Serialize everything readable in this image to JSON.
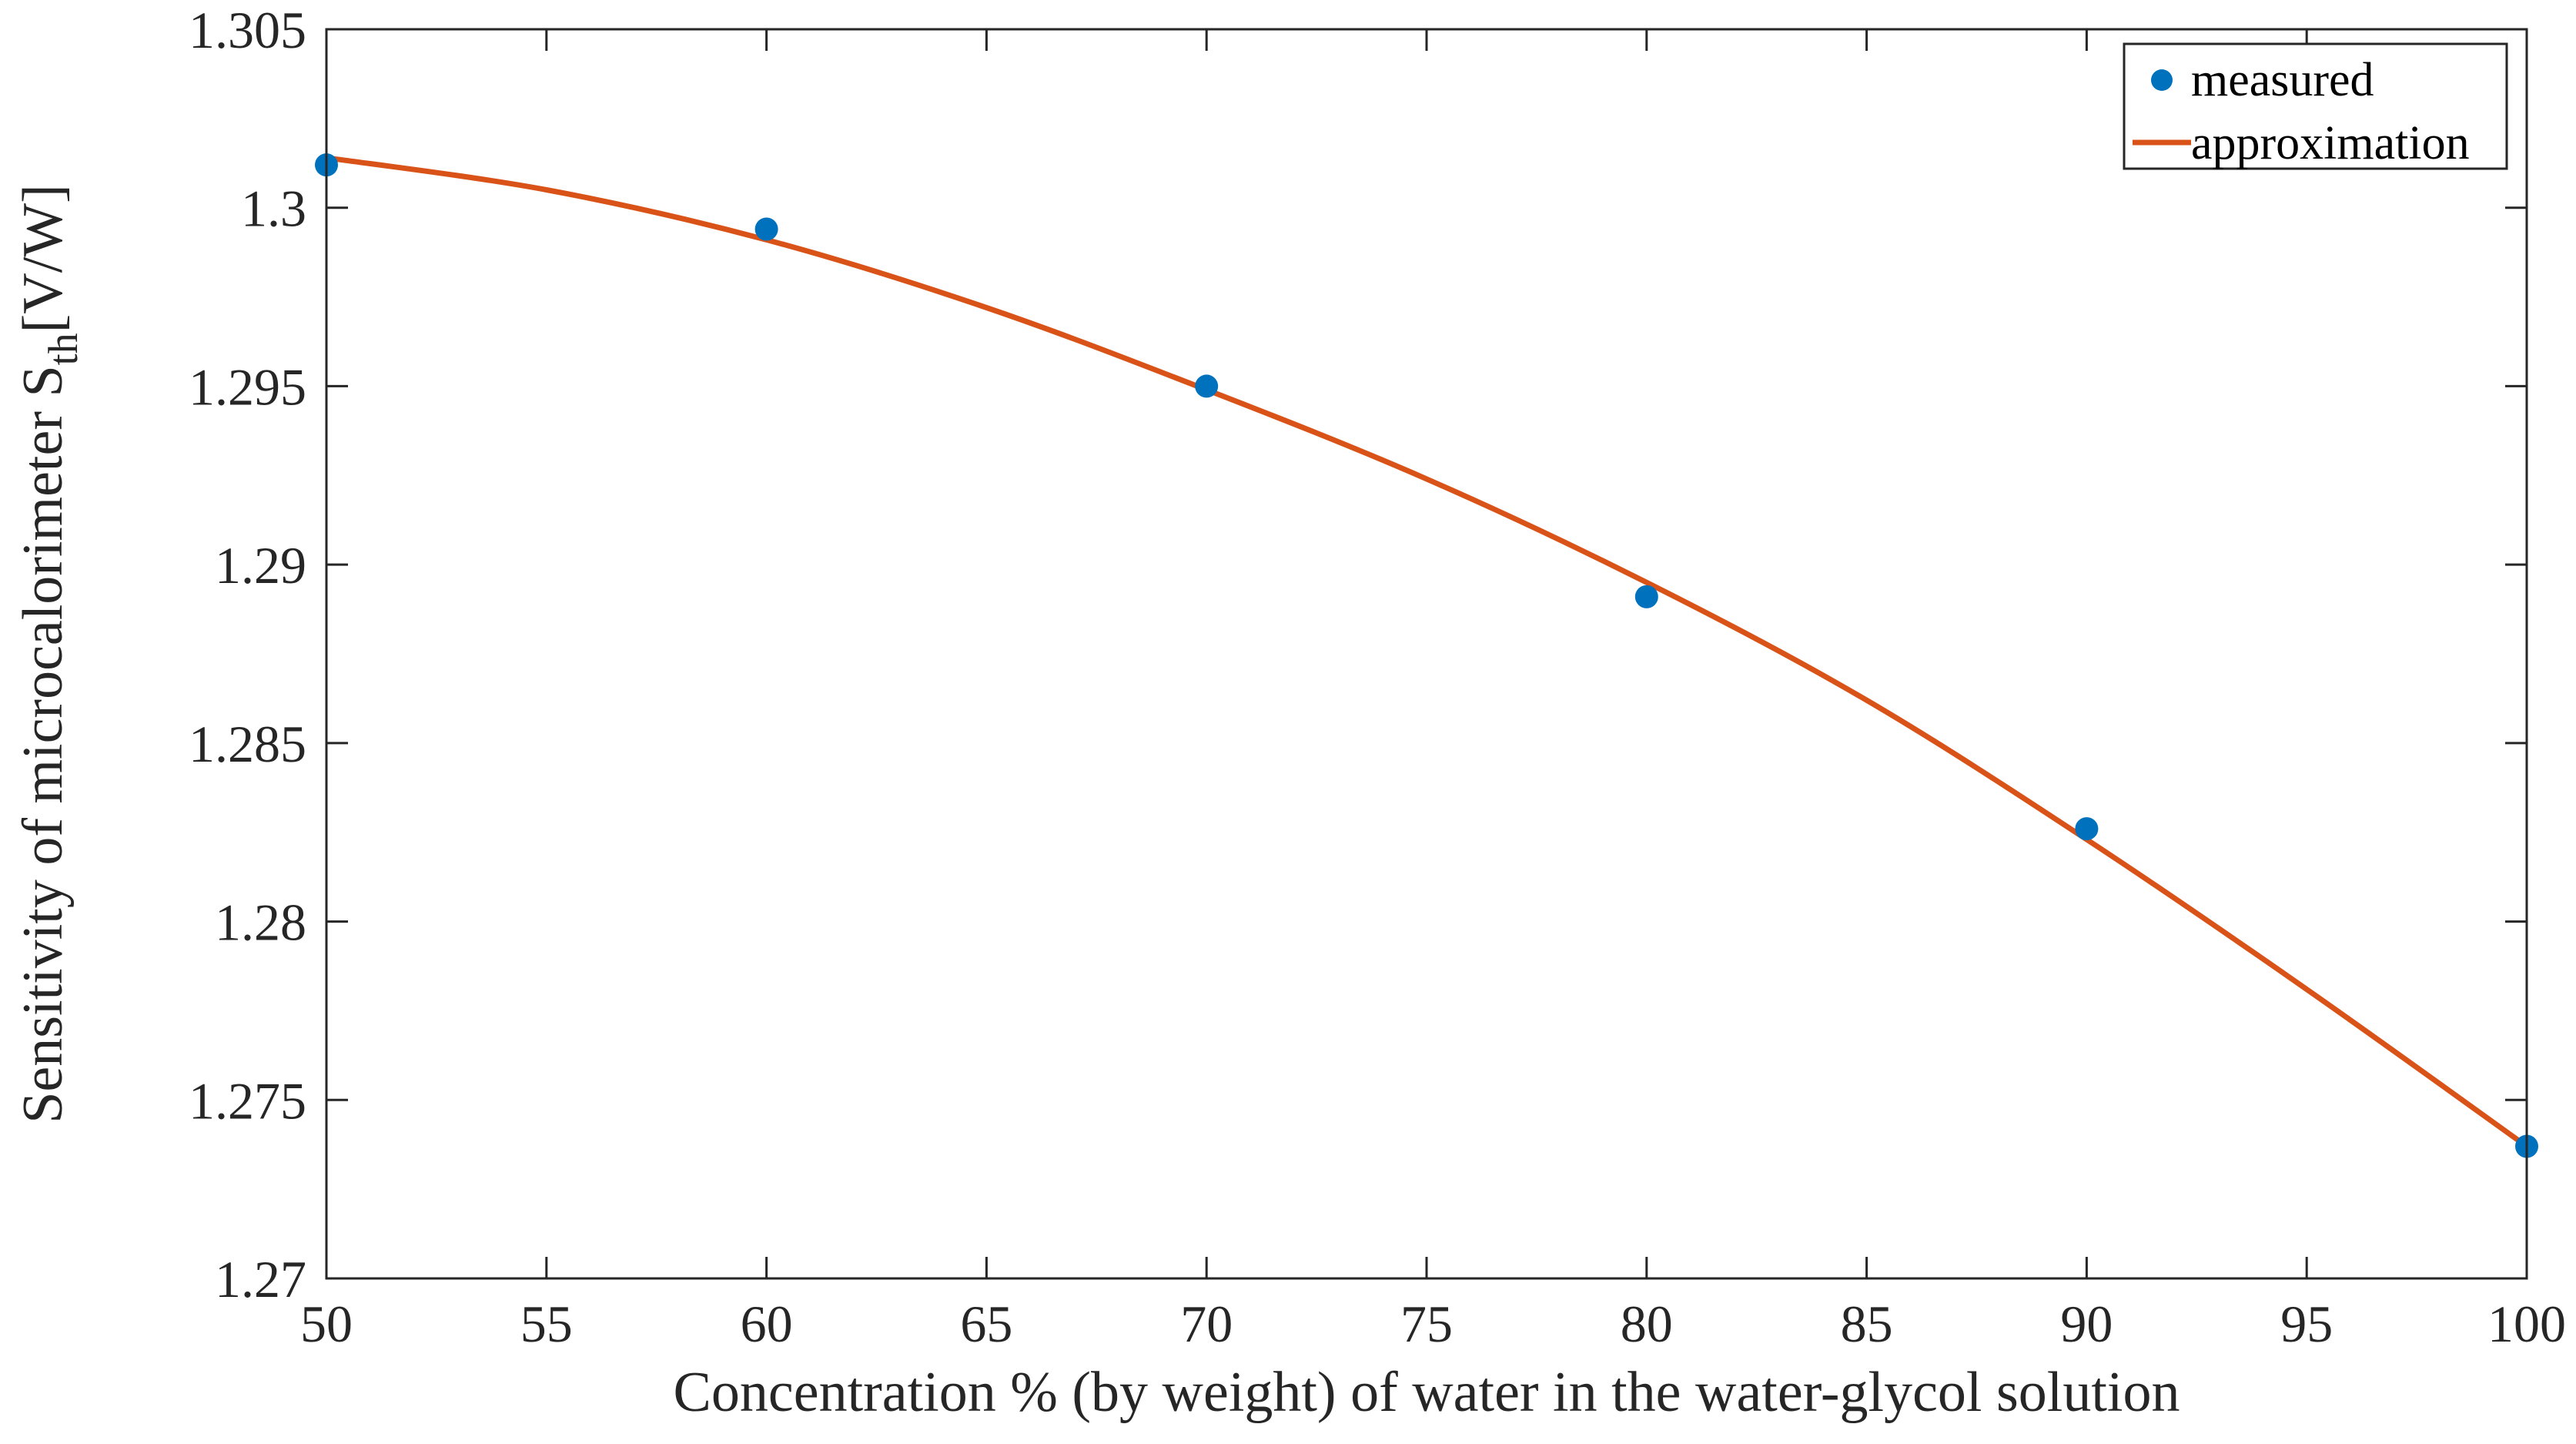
{
  "chart_data": {
    "type": "scatter+line",
    "title": "",
    "xlabel": "Concentration % (by weight) of water in the water-glycol solution",
    "ylabel_main": "Sensitivity of microcalorimeter S",
    "ylabel_sub": "th",
    "ylabel_unit": "[V/W]",
    "xlim": [
      50,
      100
    ],
    "ylim": [
      1.27,
      1.305
    ],
    "xticks": [
      50,
      55,
      60,
      65,
      70,
      75,
      80,
      85,
      90,
      95,
      100
    ],
    "xtick_labels": [
      "50",
      "55",
      "60",
      "65",
      "70",
      "75",
      "80",
      "85",
      "90",
      "95",
      "100"
    ],
    "yticks": [
      1.27,
      1.275,
      1.28,
      1.285,
      1.29,
      1.295,
      1.3,
      1.305
    ],
    "ytick_labels": [
      "1.27",
      "1.275",
      "1.28",
      "1.285",
      "1.29",
      "1.295",
      "1.3",
      "1.305"
    ],
    "grid": false,
    "legend_position": "top-right",
    "series": [
      {
        "name": "measured",
        "kind": "scatter",
        "color": "#0072BD",
        "x": [
          50,
          60,
          70,
          80,
          90,
          100
        ],
        "y": [
          1.3012,
          1.2994,
          1.295,
          1.2891,
          1.2826,
          1.2737
        ]
      },
      {
        "name": "approximation",
        "kind": "line",
        "color": "#D95319",
        "x": [
          50,
          55,
          60,
          65,
          70,
          75,
          80,
          85,
          90,
          95,
          100
        ],
        "y": [
          1.3014,
          1.3005,
          1.2991,
          1.2972,
          1.2949,
          1.2924,
          1.2895,
          1.2862,
          1.2823,
          1.2781,
          1.2737
        ]
      }
    ]
  }
}
